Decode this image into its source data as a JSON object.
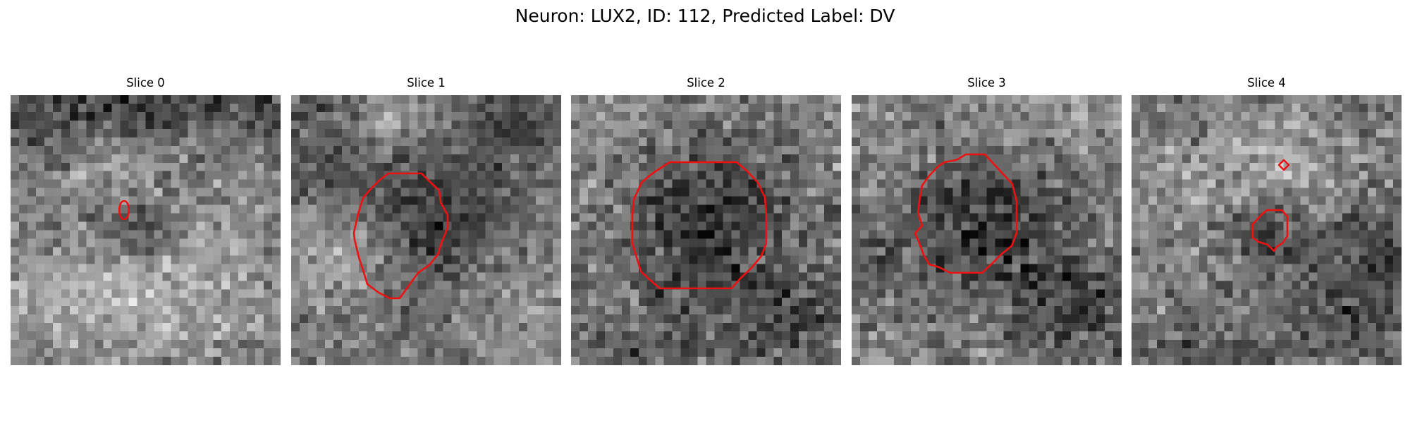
{
  "figure": {
    "title": "Neuron: LUX2, ID: 112, Predicted Label: DV"
  },
  "colors": {
    "contour": "#ee1111",
    "image_colormap": "grayscale"
  },
  "panels": [
    {
      "title": "Slice 0"
    },
    {
      "title": "Slice 1"
    },
    {
      "title": "Slice 2"
    },
    {
      "title": "Slice 3"
    },
    {
      "title": "Slice 4"
    }
  ]
}
